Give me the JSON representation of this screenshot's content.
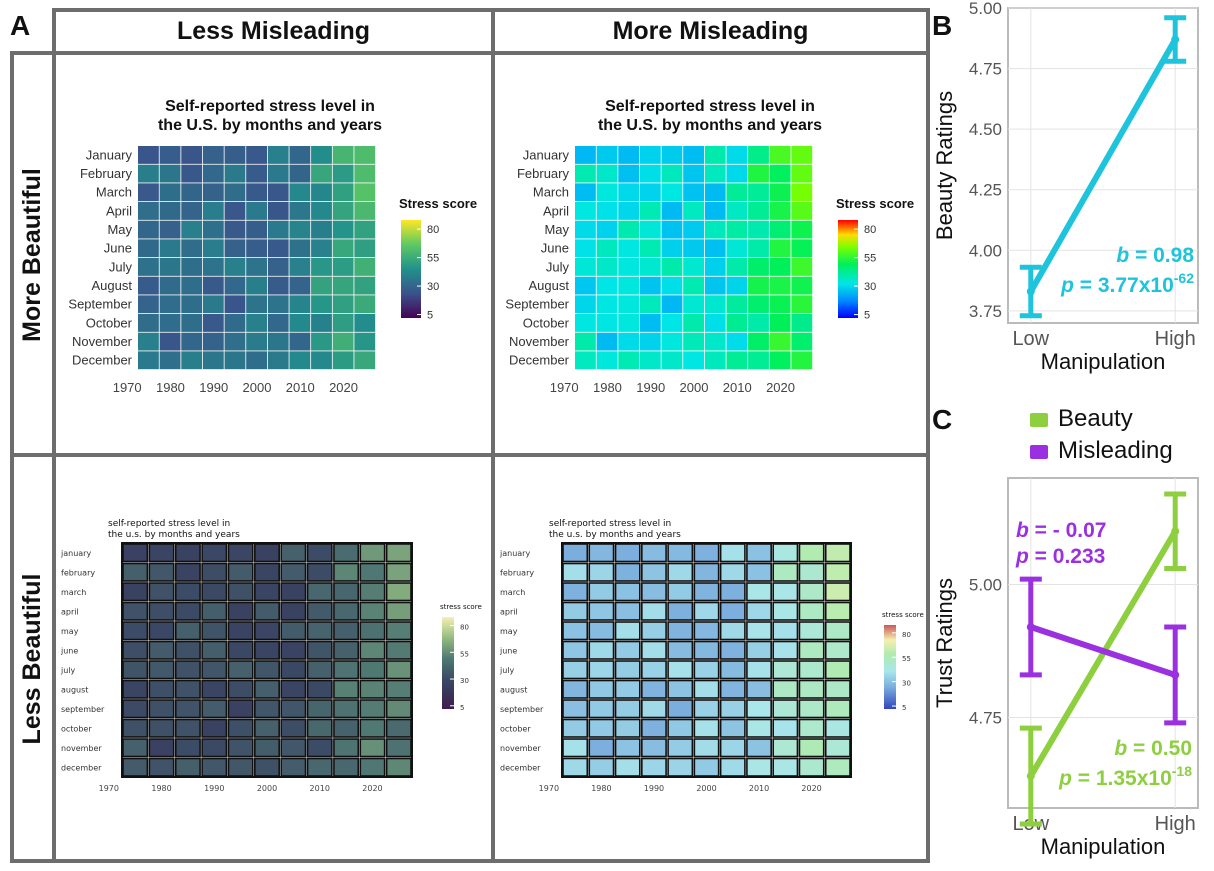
{
  "panel_labels": {
    "a": "A",
    "b": "B",
    "c": "C"
  },
  "columns": {
    "left": "Less Misleading",
    "right": "More Misleading"
  },
  "rows": {
    "top": "More  Beautiful",
    "bottom": "Less  Beautiful"
  },
  "heatmaps": {
    "top_title": "Self-reported stress level in\nthe U.S. by months and years",
    "bottom_title": "self-reported stress level in\nthe u.s. by months and years",
    "legend_title_top": "Stress score",
    "legend_title_bottom": "stress score",
    "legend_ticks": [
      "80",
      "55",
      "30",
      "5"
    ],
    "months_top": [
      "January",
      "February",
      "March",
      "April",
      "May",
      "June",
      "July",
      "August",
      "September",
      "October",
      "November",
      "December"
    ],
    "months_bottom": [
      "january",
      "february",
      "march",
      "april",
      "may",
      "june",
      "july",
      "august",
      "september",
      "october",
      "november",
      "december"
    ],
    "year_ticks": [
      "1970",
      "1980",
      "1990",
      "2000",
      "2010",
      "2020"
    ]
  },
  "chart_data": [
    {
      "type": "heatmap",
      "title": "Self-reported stress level in the U.S. by months and years",
      "x_label": "",
      "y_label": "",
      "x_ticks": [
        1970,
        1980,
        1990,
        2000,
        2010,
        2020
      ],
      "y_categories": [
        "January",
        "February",
        "March",
        "April",
        "May",
        "June",
        "July",
        "August",
        "September",
        "October",
        "November",
        "December"
      ],
      "color_scale": {
        "label": "Stress score",
        "range": [
          5,
          85
        ],
        "ticks": [
          5,
          30,
          55,
          80
        ]
      },
      "note": "Same underlying stress data shown in four styles (Less/More Misleading x More/Less Beautiful)"
    },
    {
      "type": "line",
      "panel": "B",
      "categories": [
        "Low",
        "High"
      ],
      "xlabel": "Manipulation",
      "ylabel": "Beauty Ratings",
      "ylim": [
        3.7,
        5.0
      ],
      "yticks": [
        3.75,
        4.0,
        4.25,
        4.5,
        4.75,
        5.0
      ],
      "series": [
        {
          "values": [
            3.83,
            4.87
          ],
          "error_low": [
            3.73,
            4.78
          ],
          "error_high": [
            3.93,
            4.96
          ],
          "color": "#1ec3dc"
        }
      ],
      "annotation": {
        "b_label": "b",
        "b_value": "= 0.98",
        "p_label": "p",
        "p_value": "= 3.77x10",
        "p_exp": "-62"
      }
    },
    {
      "type": "line",
      "panel": "C",
      "categories": [
        "Low",
        "High"
      ],
      "xlabel": "Manipulation",
      "ylabel": "Trust Ratings",
      "ylim": [
        4.58,
        5.2
      ],
      "yticks": [
        4.75,
        5.0
      ],
      "series": [
        {
          "name": "Beauty",
          "values": [
            4.64,
            5.1
          ],
          "error_low": [
            4.55,
            5.03
          ],
          "error_high": [
            4.73,
            5.17
          ],
          "color": "#8dcf3f"
        },
        {
          "name": "Misleading",
          "values": [
            4.92,
            4.83
          ],
          "error_low": [
            4.83,
            4.74
          ],
          "error_high": [
            5.01,
            4.92
          ],
          "color": "#9b30e0"
        }
      ],
      "annotations": [
        {
          "b_label": "b",
          "b_value": "= - 0.07",
          "p_label": "p",
          "p_value": "= 0.233",
          "p_exp": "",
          "color": "#9b30e0"
        },
        {
          "b_label": "b",
          "b_value": "= 0.50",
          "p_label": "p",
          "p_value": "= 1.35x10",
          "p_exp": "-18",
          "color": "#8dcf3f"
        }
      ]
    }
  ],
  "colors": {
    "frame": "#6d6d6d",
    "cyan": "#1ec3dc",
    "green": "#8dcf3f",
    "purple": "#9b30e0"
  }
}
